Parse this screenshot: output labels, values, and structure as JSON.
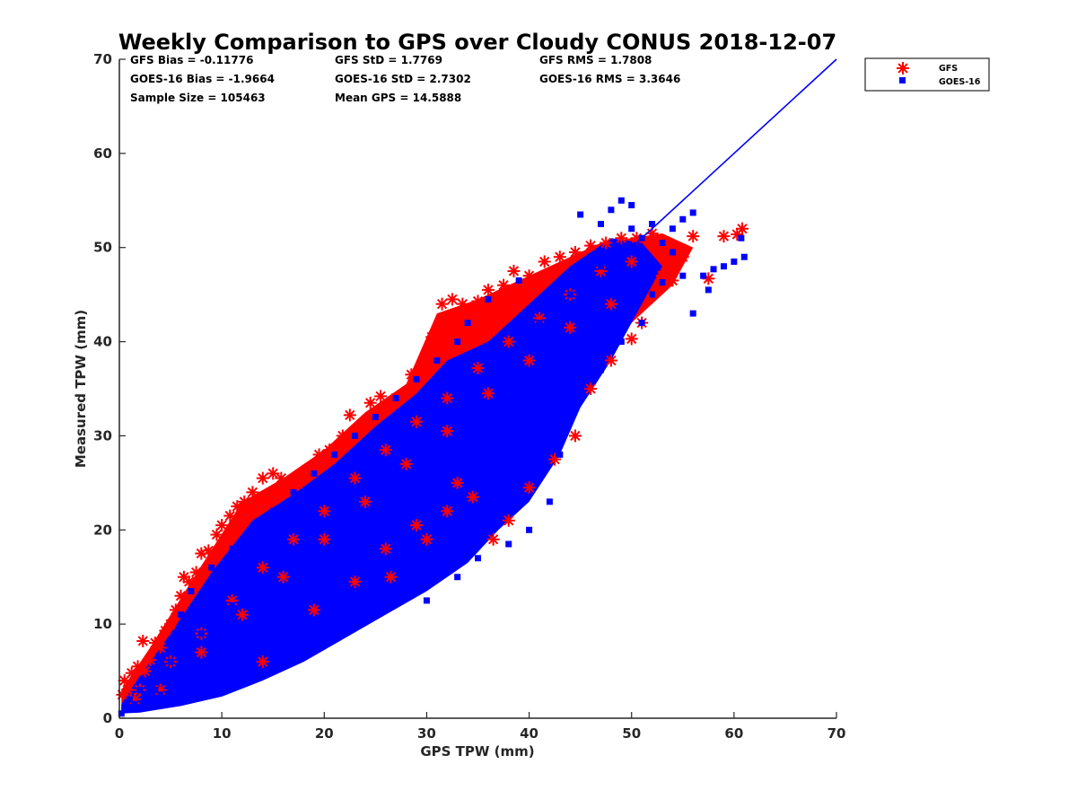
{
  "chart_data": {
    "type": "scatter",
    "title": "Weekly Comparison to GPS over Cloudy CONUS 2018-12-07",
    "xlabel": "GPS TPW (mm)",
    "ylabel": "Measured TPW (mm)",
    "xlim": [
      0,
      70
    ],
    "ylim": [
      0,
      70
    ],
    "xticks": [
      "0",
      "10",
      "20",
      "30",
      "40",
      "50",
      "60",
      "70"
    ],
    "yticks": [
      "0",
      "10",
      "20",
      "30",
      "40",
      "50",
      "60",
      "70"
    ],
    "grid": false,
    "legend_position": "outside top-right",
    "stats": {
      "gfs_bias": "GFS Bias = -0.11776",
      "gfs_std": "GFS StD = 1.7769",
      "gfs_rms": "GFS RMS = 1.7808",
      "goes_bias": "GOES-16 Bias = -1.9664",
      "goes_std": "GOES-16 StD = 2.7302",
      "goes_rms": "GOES-16 RMS = 3.3646",
      "sample_size": "Sample Size = 105463",
      "mean_gps": "Mean GPS = 14.5888"
    },
    "reference_line": {
      "x": [
        50,
        70
      ],
      "y": [
        50,
        70
      ],
      "color": "#0000ff"
    },
    "series": [
      {
        "name": "GFS",
        "marker": "asterisk",
        "color": "#ff0000",
        "points": [
          [
            0.3,
            2.5
          ],
          [
            0.5,
            4
          ],
          [
            0.8,
            3
          ],
          [
            1.2,
            4.8
          ],
          [
            1.5,
            2
          ],
          [
            1.8,
            5.5
          ],
          [
            2.3,
            8.2
          ],
          [
            2.5,
            5
          ],
          [
            3,
            6.2
          ],
          [
            3.5,
            8
          ],
          [
            4,
            7.5
          ],
          [
            4.5,
            9.3
          ],
          [
            5,
            10
          ],
          [
            5.5,
            11.5
          ],
          [
            6,
            13
          ],
          [
            6.3,
            15
          ],
          [
            6.8,
            14.5
          ],
          [
            7.5,
            15.5
          ],
          [
            8,
            17.5
          ],
          [
            8.7,
            17.8
          ],
          [
            9.5,
            19.5
          ],
          [
            10,
            20.5
          ],
          [
            10.8,
            21.5
          ],
          [
            11.5,
            22.5
          ],
          [
            12.2,
            23
          ],
          [
            13,
            24
          ],
          [
            14,
            25.5
          ],
          [
            15,
            26
          ],
          [
            15.8,
            25.5
          ],
          [
            16.5,
            24.8
          ],
          [
            17.5,
            25.2
          ],
          [
            18.5,
            26.5
          ],
          [
            19.5,
            28
          ],
          [
            20.5,
            28.5
          ],
          [
            21.8,
            30
          ],
          [
            22.5,
            32.2
          ],
          [
            23.5,
            31
          ],
          [
            24.5,
            33.5
          ],
          [
            25.5,
            34.2
          ],
          [
            27,
            34
          ],
          [
            28.5,
            36.5
          ],
          [
            29.5,
            37
          ],
          [
            30.5,
            40.5
          ],
          [
            31.5,
            44
          ],
          [
            32.5,
            44.5
          ],
          [
            33.5,
            44
          ],
          [
            35,
            44.3
          ],
          [
            36,
            45.5
          ],
          [
            37.5,
            46
          ],
          [
            38.5,
            47.5
          ],
          [
            40,
            47
          ],
          [
            41.5,
            48.5
          ],
          [
            43,
            49
          ],
          [
            44.5,
            49.5
          ],
          [
            46,
            50.2
          ],
          [
            47.5,
            50.5
          ],
          [
            49,
            51
          ],
          [
            50.5,
            51
          ],
          [
            52,
            51.5
          ],
          [
            53,
            47
          ],
          [
            54,
            46.5
          ],
          [
            55,
            49
          ],
          [
            56,
            51.2
          ],
          [
            57.5,
            46.7
          ],
          [
            59,
            51.2
          ],
          [
            60.3,
            51.4
          ],
          [
            60.8,
            52
          ],
          [
            2,
            3
          ],
          [
            5,
            6
          ],
          [
            8,
            9
          ],
          [
            11,
            12.5
          ],
          [
            14,
            16
          ],
          [
            17,
            19
          ],
          [
            20,
            22
          ],
          [
            23,
            25.5
          ],
          [
            26,
            28.5
          ],
          [
            29,
            31.5
          ],
          [
            32,
            34
          ],
          [
            35,
            37.2
          ],
          [
            38,
            40
          ],
          [
            41,
            42.5
          ],
          [
            44,
            45
          ],
          [
            47,
            47.5
          ],
          [
            50,
            48.5
          ],
          [
            4,
            3
          ],
          [
            8,
            7
          ],
          [
            12,
            11
          ],
          [
            16,
            15
          ],
          [
            20,
            19
          ],
          [
            24,
            23
          ],
          [
            28,
            27
          ],
          [
            32,
            30.5
          ],
          [
            36,
            34.5
          ],
          [
            40,
            38
          ],
          [
            44,
            41.5
          ],
          [
            48,
            44
          ],
          [
            14,
            6
          ],
          [
            19,
            11.5
          ],
          [
            23,
            14.5
          ],
          [
            26,
            18
          ],
          [
            29,
            20.5
          ],
          [
            32,
            22
          ],
          [
            34.5,
            23.5
          ],
          [
            36.5,
            19
          ],
          [
            38,
            21
          ],
          [
            40,
            24.5
          ],
          [
            42.5,
            27.5
          ],
          [
            44.5,
            30
          ],
          [
            46,
            35
          ],
          [
            48,
            38
          ],
          [
            50,
            40.3
          ],
          [
            51,
            42
          ],
          [
            26.5,
            15
          ],
          [
            30,
            19
          ],
          [
            33,
            25
          ]
        ]
      },
      {
        "name": "GOES-16",
        "marker": "square",
        "color": "#0000ff",
        "points": [
          [
            0.2,
            0.5
          ],
          [
            0.5,
            1
          ],
          [
            1,
            2
          ],
          [
            1.5,
            1.5
          ],
          [
            2,
            3
          ],
          [
            2.5,
            2.5
          ],
          [
            3,
            4
          ],
          [
            3.5,
            3
          ],
          [
            4,
            5
          ],
          [
            4.5,
            4
          ],
          [
            5,
            6
          ],
          [
            5.5,
            5
          ],
          [
            6,
            7
          ],
          [
            6.5,
            6
          ],
          [
            7,
            8
          ],
          [
            8,
            9
          ],
          [
            9,
            10
          ],
          [
            10,
            11
          ],
          [
            11,
            12
          ],
          [
            12,
            13
          ],
          [
            13,
            14
          ],
          [
            14,
            15
          ],
          [
            15,
            16
          ],
          [
            16,
            17
          ],
          [
            17,
            18
          ],
          [
            18,
            19
          ],
          [
            19,
            20
          ],
          [
            20,
            21
          ],
          [
            21,
            22
          ],
          [
            22,
            23
          ],
          [
            23,
            24
          ],
          [
            24,
            25
          ],
          [
            25,
            26
          ],
          [
            26,
            27
          ],
          [
            27,
            28
          ],
          [
            28,
            29
          ],
          [
            29,
            30
          ],
          [
            30,
            31
          ],
          [
            31,
            32
          ],
          [
            32,
            33
          ],
          [
            33,
            34
          ],
          [
            34,
            35
          ],
          [
            35,
            36
          ],
          [
            36,
            37
          ],
          [
            37,
            38
          ],
          [
            38,
            39
          ],
          [
            39,
            40
          ],
          [
            40,
            41
          ],
          [
            41,
            42
          ],
          [
            42,
            43
          ],
          [
            43,
            44
          ],
          [
            44,
            45
          ],
          [
            45,
            46
          ],
          [
            46,
            47
          ],
          [
            47,
            48
          ],
          [
            2,
            1
          ],
          [
            4,
            2.5
          ],
          [
            6,
            4
          ],
          [
            8,
            5.5
          ],
          [
            10,
            7
          ],
          [
            12,
            8.5
          ],
          [
            14,
            10
          ],
          [
            16,
            11.5
          ],
          [
            18,
            13
          ],
          [
            20,
            14.5
          ],
          [
            22,
            16
          ],
          [
            24,
            17.5
          ],
          [
            26,
            19
          ],
          [
            28,
            20.5
          ],
          [
            30,
            22
          ],
          [
            32,
            24
          ],
          [
            34,
            26
          ],
          [
            36,
            28
          ],
          [
            38,
            30
          ],
          [
            40,
            32
          ],
          [
            42,
            34
          ],
          [
            44,
            36
          ],
          [
            46,
            38
          ],
          [
            48,
            40
          ],
          [
            4,
            1.5
          ],
          [
            7,
            3
          ],
          [
            10,
            4.5
          ],
          [
            13,
            6
          ],
          [
            16,
            8
          ],
          [
            19,
            10
          ],
          [
            22,
            12
          ],
          [
            25,
            14
          ],
          [
            28,
            16
          ],
          [
            31,
            18
          ],
          [
            33,
            19
          ],
          [
            35,
            21
          ],
          [
            37,
            24
          ],
          [
            39,
            27
          ],
          [
            41,
            30
          ],
          [
            43,
            32
          ],
          [
            45,
            34
          ],
          [
            47,
            37
          ],
          [
            49,
            40
          ],
          [
            51,
            42
          ],
          [
            30,
            12.5
          ],
          [
            33,
            15
          ],
          [
            35,
            17
          ],
          [
            36.5,
            22
          ],
          [
            38,
            18.5
          ],
          [
            40,
            20
          ],
          [
            42,
            23
          ],
          [
            43,
            28
          ],
          [
            44,
            33
          ],
          [
            45,
            35.5
          ],
          [
            46,
            36
          ],
          [
            48,
            40.5
          ],
          [
            50,
            44
          ],
          [
            52,
            45
          ],
          [
            53,
            46.3
          ],
          [
            55,
            47
          ],
          [
            56,
            43
          ],
          [
            57.5,
            45.5
          ],
          [
            59,
            48
          ],
          [
            60,
            48.5
          ],
          [
            61,
            49
          ],
          [
            60.7,
            51
          ],
          [
            58,
            47.7
          ],
          [
            57,
            47
          ],
          [
            45,
            53.5
          ],
          [
            48,
            54
          ],
          [
            50,
            52
          ],
          [
            52,
            52.5
          ],
          [
            54,
            52
          ],
          [
            55,
            53
          ],
          [
            56,
            53.7
          ],
          [
            47,
            52.5
          ],
          [
            50,
            54.5
          ],
          [
            49,
            55
          ],
          [
            51,
            51
          ],
          [
            53,
            50.5
          ],
          [
            54,
            49.5
          ],
          [
            52,
            48
          ],
          [
            50.5,
            46.5
          ],
          [
            47,
            46
          ],
          [
            44,
            44
          ],
          [
            42,
            45
          ],
          [
            41,
            43.5
          ],
          [
            39,
            46.5
          ],
          [
            36,
            44.5
          ],
          [
            34,
            42
          ],
          [
            33,
            40
          ],
          [
            31,
            38
          ],
          [
            29,
            36
          ],
          [
            27,
            34
          ],
          [
            25,
            32
          ],
          [
            23,
            30
          ],
          [
            21,
            28
          ],
          [
            19,
            26
          ],
          [
            17,
            24
          ],
          [
            15,
            22
          ],
          [
            13,
            20
          ],
          [
            11,
            18
          ],
          [
            9,
            16
          ],
          [
            7,
            13.5
          ],
          [
            6,
            11
          ]
        ]
      }
    ]
  },
  "legend": {
    "items": [
      {
        "label": "GFS",
        "marker": "asterisk",
        "color": "#ff0000"
      },
      {
        "label": "GOES-16",
        "marker": "square",
        "color": "#0000ff"
      }
    ]
  }
}
